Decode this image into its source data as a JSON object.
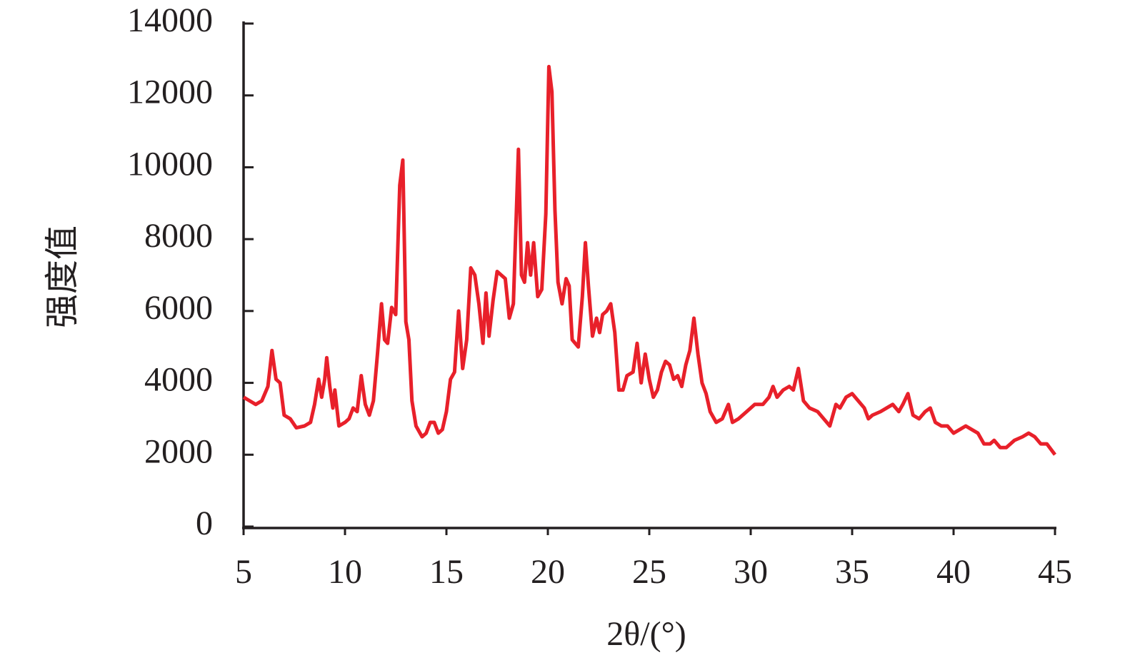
{
  "chart_data": {
    "type": "line",
    "xlabel": "2θ/(°)",
    "ylabel": "强度值",
    "xlim": [
      5,
      45
    ],
    "xticks": [
      5,
      10,
      15,
      20,
      25,
      30,
      35,
      40,
      45
    ],
    "ylim": [
      0,
      14000
    ],
    "yticks": [
      0,
      2000,
      4000,
      6000,
      8000,
      10000,
      12000,
      14000
    ],
    "x": [
      5.0,
      5.3,
      5.6,
      5.9,
      6.2,
      6.4,
      6.6,
      6.8,
      7.0,
      7.3,
      7.6,
      8.0,
      8.3,
      8.5,
      8.7,
      8.85,
      9.0,
      9.1,
      9.25,
      9.4,
      9.5,
      9.7,
      10.0,
      10.2,
      10.4,
      10.6,
      10.8,
      11.0,
      11.2,
      11.4,
      11.6,
      11.8,
      11.95,
      12.1,
      12.3,
      12.5,
      12.7,
      12.85,
      13.0,
      13.15,
      13.3,
      13.5,
      13.8,
      14.0,
      14.2,
      14.4,
      14.6,
      14.8,
      15.0,
      15.2,
      15.4,
      15.6,
      15.8,
      16.0,
      16.2,
      16.4,
      16.6,
      16.8,
      16.95,
      17.1,
      17.3,
      17.5,
      17.7,
      17.9,
      18.1,
      18.3,
      18.55,
      18.7,
      18.85,
      19.0,
      19.15,
      19.3,
      19.5,
      19.7,
      19.9,
      20.05,
      20.2,
      20.35,
      20.5,
      20.7,
      20.9,
      21.05,
      21.2,
      21.5,
      21.7,
      21.85,
      22.0,
      22.2,
      22.4,
      22.55,
      22.7,
      22.9,
      23.1,
      23.3,
      23.5,
      23.7,
      23.9,
      24.2,
      24.4,
      24.6,
      24.8,
      25.0,
      25.2,
      25.4,
      25.6,
      25.8,
      26.0,
      26.2,
      26.4,
      26.6,
      26.8,
      27.0,
      27.2,
      27.4,
      27.6,
      27.8,
      28.0,
      28.3,
      28.6,
      28.9,
      29.1,
      29.4,
      29.8,
      30.2,
      30.6,
      30.9,
      31.1,
      31.3,
      31.6,
      31.9,
      32.1,
      32.35,
      32.6,
      32.9,
      33.3,
      33.6,
      33.9,
      34.2,
      34.4,
      34.7,
      35.0,
      35.3,
      35.6,
      35.8,
      36.0,
      36.4,
      36.7,
      37.0,
      37.3,
      37.5,
      37.75,
      38.0,
      38.3,
      38.6,
      38.85,
      39.1,
      39.4,
      39.7,
      40.0,
      40.3,
      40.6,
      40.9,
      41.2,
      41.5,
      41.8,
      42.0,
      42.3,
      42.6,
      43.0,
      43.4,
      43.7,
      44.0,
      44.3,
      44.6,
      45.0
    ],
    "series": [
      {
        "color": "#e8202a",
        "values": [
          3600,
          3500,
          3400,
          3500,
          3900,
          4900,
          4100,
          4000,
          3100,
          3000,
          2750,
          2800,
          2900,
          3400,
          4100,
          3600,
          4100,
          4700,
          3900,
          3300,
          3800,
          2800,
          2900,
          3000,
          3300,
          3200,
          4200,
          3400,
          3100,
          3500,
          4800,
          6200,
          5200,
          5100,
          6100,
          5900,
          9500,
          10200,
          5700,
          5200,
          3500,
          2800,
          2500,
          2600,
          2900,
          2900,
          2600,
          2700,
          3200,
          4100,
          4300,
          6000,
          4400,
          5200,
          7200,
          7000,
          6200,
          5100,
          6500,
          5300,
          6300,
          7100,
          7000,
          6900,
          5800,
          6200,
          10500,
          7000,
          6800,
          7900,
          7000,
          7900,
          6400,
          6600,
          8700,
          12800,
          12100,
          8800,
          6800,
          6200,
          6900,
          6700,
          5200,
          5000,
          6400,
          7900,
          6700,
          5300,
          5800,
          5400,
          5900,
          6000,
          6200,
          5400,
          3800,
          3800,
          4200,
          4300,
          5100,
          4000,
          4800,
          4100,
          3600,
          3800,
          4300,
          4600,
          4500,
          4100,
          4200,
          3900,
          4500,
          4900,
          5800,
          4800,
          4000,
          3700,
          3200,
          2900,
          3000,
          3400,
          2900,
          3000,
          3200,
          3400,
          3400,
          3600,
          3900,
          3600,
          3800,
          3900,
          3800,
          4400,
          3500,
          3300,
          3200,
          3000,
          2800,
          3400,
          3300,
          3600,
          3700,
          3500,
          3300,
          3000,
          3100,
          3200,
          3300,
          3400,
          3200,
          3400,
          3700,
          3100,
          3000,
          3200,
          3300,
          2900,
          2800,
          2800,
          2600,
          2700,
          2800,
          2700,
          2600,
          2300,
          2300,
          2400,
          2200,
          2200,
          2400,
          2500,
          2600,
          2500,
          2300,
          2300,
          2000
        ]
      }
    ]
  }
}
